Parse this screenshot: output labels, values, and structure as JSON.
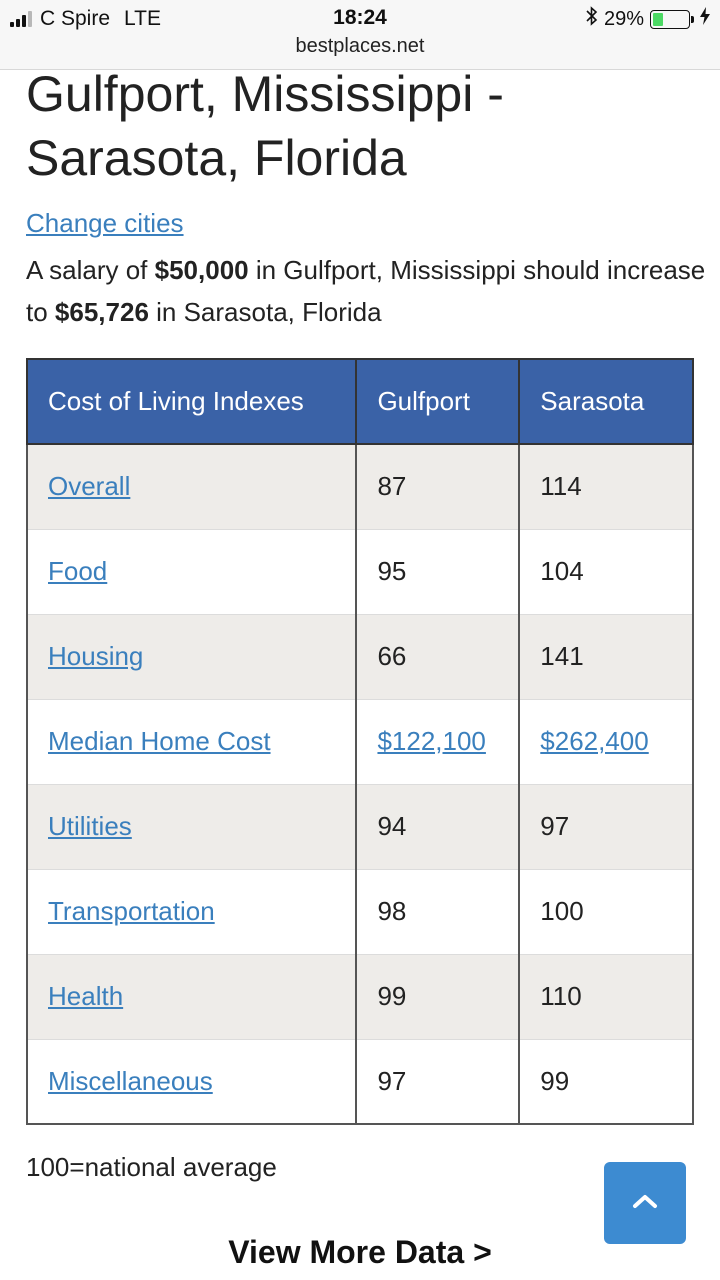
{
  "status_bar": {
    "carrier": "C Spire",
    "network": "LTE",
    "time": "18:24",
    "url": "bestplaces.net",
    "battery_percent": "29%",
    "battery_level": 0.29,
    "icons": [
      "signal-icon",
      "bluetooth-icon",
      "battery-icon",
      "charging-bolt-icon"
    ]
  },
  "header": {
    "title": "Gulfport, Mississippi - Sarasota, Florida",
    "change_link": "Change cities"
  },
  "summary": {
    "prefix": "A salary of ",
    "amount_from": "$50,000",
    "middle": " in Gulfport, Mississippi should increase to ",
    "amount_to": "$65,726",
    "suffix": " in Sarasota, Florida"
  },
  "table": {
    "headers": [
      "Cost of Living Indexes",
      "Gulfport",
      "Sarasota"
    ],
    "rows": [
      {
        "label": "Overall",
        "a": "87",
        "b": "114"
      },
      {
        "label": "Food",
        "a": "95",
        "b": "104"
      },
      {
        "label": "Housing",
        "a": "66",
        "b": "141"
      },
      {
        "label": "Median Home Cost",
        "a": "$122,100",
        "b": "$262,400"
      },
      {
        "label": "Utilities",
        "a": "94",
        "b": "97"
      },
      {
        "label": "Transportation",
        "a": "98",
        "b": "100"
      },
      {
        "label": "Health",
        "a": "99",
        "b": "110"
      },
      {
        "label": "Miscellaneous",
        "a": "97",
        "b": "99"
      }
    ]
  },
  "footnote": "100=national average",
  "view_more": "View More Data >",
  "colors": {
    "header_bg": "#3a62a7",
    "link": "#3a7fbd",
    "alt_row": "#eeece9",
    "to_top_button": "#3d8bd1"
  }
}
